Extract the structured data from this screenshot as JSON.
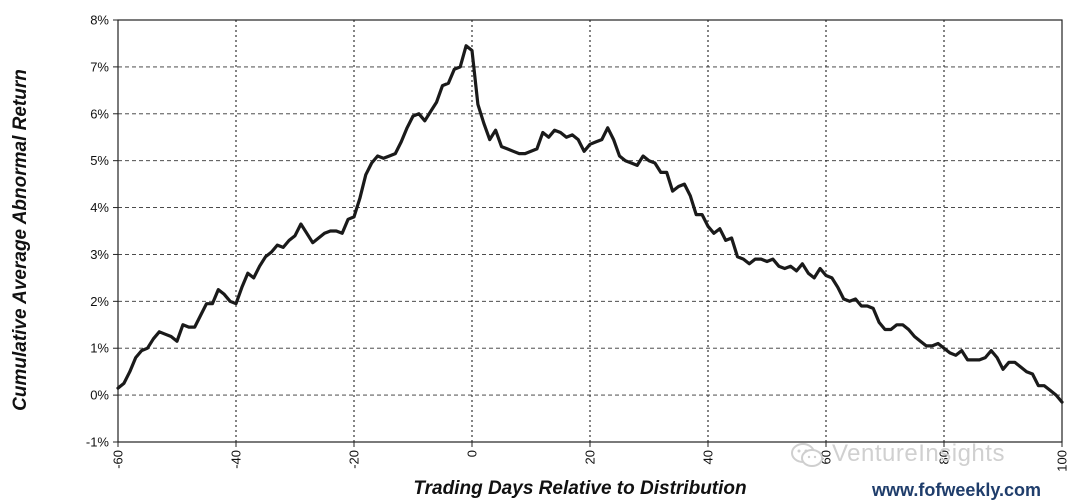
{
  "chart_data": {
    "type": "line",
    "title": "",
    "xlabel": "Trading Days Relative to Distribution",
    "ylabel": "Cumulative Average Abnormal Return",
    "xlim": [
      -60,
      100
    ],
    "ylim": [
      -1,
      8
    ],
    "x_ticks": [
      -60,
      -40,
      -20,
      0,
      20,
      40,
      60,
      80,
      100
    ],
    "x_tick_labels": [
      "-60",
      "-40",
      "-20",
      "0",
      "20",
      "40",
      "60",
      "80",
      "100"
    ],
    "y_ticks": [
      -1,
      0,
      1,
      2,
      3,
      4,
      5,
      6,
      7,
      8
    ],
    "y_tick_labels": [
      "-1%",
      "0%",
      "1%",
      "2%",
      "3%",
      "4%",
      "5%",
      "6%",
      "7%",
      "8%"
    ],
    "grid": {
      "vertical": "dotted",
      "horizontal": "dashed"
    },
    "series": [
      {
        "x": [
          -60,
          -59,
          -58,
          -57,
          -56,
          -55,
          -54,
          -53,
          -52,
          -51,
          -50,
          -49,
          -48,
          -47,
          -46,
          -45,
          -44,
          -43,
          -42,
          -41,
          -40,
          -39,
          -38,
          -37,
          -36,
          -35,
          -34,
          -33,
          -32,
          -31,
          -30,
          -29,
          -28,
          -27,
          -26,
          -25,
          -24,
          -23,
          -22,
          -21,
          -20,
          -19,
          -18,
          -17,
          -16,
          -15,
          -14,
          -13,
          -12,
          -11,
          -10,
          -9,
          -8,
          -7,
          -6,
          -5,
          -4,
          -3,
          -2,
          -1,
          0,
          1,
          2,
          3,
          4,
          5,
          6,
          7,
          8,
          9,
          10,
          11,
          12,
          13,
          14,
          15,
          16,
          17,
          18,
          19,
          20,
          21,
          22,
          23,
          24,
          25,
          26,
          27,
          28,
          29,
          30,
          31,
          32,
          33,
          34,
          35,
          36,
          37,
          38,
          39,
          40,
          41,
          42,
          43,
          44,
          45,
          46,
          47,
          48,
          49,
          50,
          51,
          52,
          53,
          54,
          55,
          56,
          57,
          58,
          59,
          60,
          61,
          62,
          63,
          64,
          65,
          66,
          67,
          68,
          69,
          70,
          71,
          72,
          73,
          74,
          75,
          76,
          77,
          78,
          79,
          80,
          81,
          82,
          83,
          84,
          85,
          86,
          87,
          88,
          89,
          90,
          91,
          92,
          93,
          94,
          95,
          96,
          97,
          98,
          99,
          100
        ],
        "y": [
          0.15,
          0.25,
          0.5,
          0.8,
          0.95,
          1.0,
          1.2,
          1.35,
          1.3,
          1.25,
          1.15,
          1.5,
          1.45,
          1.45,
          1.7,
          1.95,
          1.95,
          2.25,
          2.15,
          2.0,
          1.95,
          2.3,
          2.6,
          2.5,
          2.75,
          2.95,
          3.05,
          3.2,
          3.15,
          3.3,
          3.4,
          3.65,
          3.45,
          3.25,
          3.35,
          3.45,
          3.5,
          3.5,
          3.45,
          3.75,
          3.8,
          4.2,
          4.7,
          4.95,
          5.1,
          5.05,
          5.1,
          5.15,
          5.4,
          5.7,
          5.95,
          6.0,
          5.85,
          6.05,
          6.25,
          6.6,
          6.65,
          6.95,
          7.0,
          7.45,
          7.35,
          6.2,
          5.8,
          5.45,
          5.65,
          5.3,
          5.25,
          5.2,
          5.15,
          5.15,
          5.2,
          5.25,
          5.6,
          5.5,
          5.65,
          5.6,
          5.5,
          5.55,
          5.45,
          5.2,
          5.35,
          5.4,
          5.45,
          5.7,
          5.45,
          5.1,
          5.0,
          4.95,
          4.9,
          5.1,
          5.0,
          4.95,
          4.75,
          4.75,
          4.35,
          4.45,
          4.5,
          4.25,
          3.85,
          3.85,
          3.6,
          3.45,
          3.55,
          3.3,
          3.35,
          2.95,
          2.9,
          2.8,
          2.9,
          2.9,
          2.85,
          2.9,
          2.75,
          2.7,
          2.75,
          2.65,
          2.8,
          2.6,
          2.5,
          2.7,
          2.55,
          2.5,
          2.3,
          2.05,
          2.0,
          2.05,
          1.9,
          1.9,
          1.85,
          1.55,
          1.4,
          1.4,
          1.5,
          1.5,
          1.4,
          1.25,
          1.15,
          1.05,
          1.05,
          1.1,
          1.0,
          0.9,
          0.85,
          0.95,
          0.75,
          0.75,
          0.75,
          0.8,
          0.95,
          0.8,
          0.55,
          0.7,
          0.7,
          0.6,
          0.5,
          0.45,
          0.2,
          0.2,
          0.1,
          0.0,
          -0.15
        ]
      }
    ]
  },
  "watermark": {
    "text": "VentureInsights",
    "icon": "wechat-icon"
  },
  "source_text": "www.fofweekly.com",
  "colors": {
    "line": "#1a1a1a",
    "grid": "#333333",
    "watermark": "#d0d0d0",
    "source": "#1f3d6b"
  }
}
